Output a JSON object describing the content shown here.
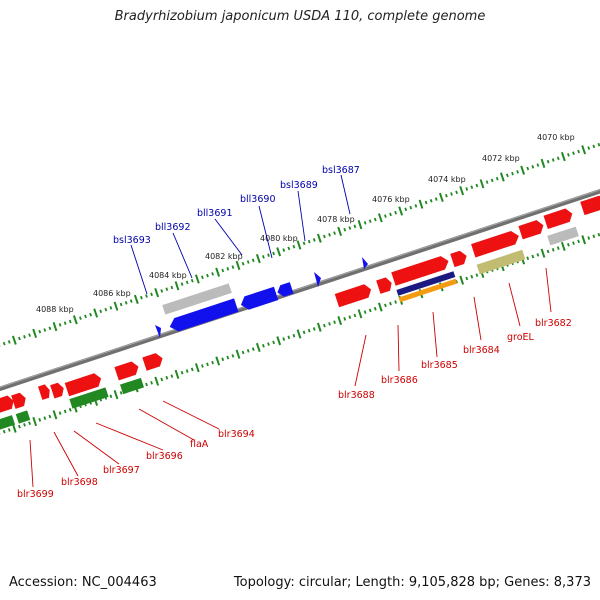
{
  "title": "Bradyrhizobium japonicum USDA 110, complete genome",
  "footer": {
    "accession": "Accession: NC_004463",
    "summary": "Topology: circular; Length: 9,105,828 bp; Genes: 8,373"
  },
  "colors": {
    "forward_gene": "#ee1111",
    "reverse_gene": "#1111ee",
    "cds_green": "#228822",
    "pseudo_gray": "#bbbbbb",
    "khaki": "#c2bc72",
    "navy": "#1a1a80",
    "orange": "#f39c12",
    "backbone": "#707070",
    "tick_green": "#228822",
    "label_forward": "#cc0000",
    "label_reverse": "#0000aa"
  },
  "scale_labels": [
    "4070 kbp",
    "4072 kbp",
    "4074 kbp",
    "4076 kbp",
    "4078 kbp",
    "4080 kbp",
    "4082 kbp",
    "4084 kbp",
    "4086 kbp",
    "4088 kbp"
  ],
  "top_gene_labels": [
    "bsl3687",
    "bsl3689",
    "bll3690",
    "bll3691",
    "bll3692",
    "bsl3693"
  ],
  "bottom_gene_labels": [
    "blr3682",
    "groEL",
    "blr3684",
    "blr3685",
    "blr3686",
    "blr3688",
    "blr3694",
    "flaA",
    "blr3696",
    "blr3697",
    "blr3698",
    "blr3699"
  ]
}
